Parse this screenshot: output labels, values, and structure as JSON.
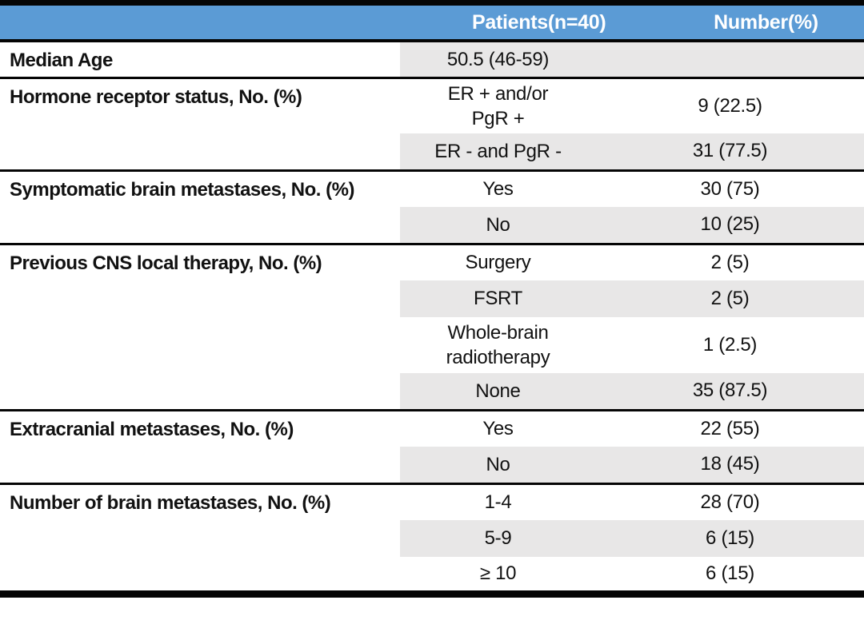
{
  "table": {
    "header": {
      "patients_col": "Patients(n=40)",
      "number_col": "Number(%)"
    },
    "sections": [
      {
        "label": "Median Age",
        "rows": [
          {
            "patients": "50.5 (46-59)",
            "number": ""
          }
        ]
      },
      {
        "label": "Hormone receptor status, No. (%)",
        "rows": [
          {
            "patients": "ER + and/or\nPgR +",
            "number": "9 (22.5)"
          },
          {
            "patients": "ER - and PgR -",
            "number": "31 (77.5)"
          }
        ]
      },
      {
        "label": "Symptomatic brain metastases, No. (%)",
        "rows": [
          {
            "patients": "Yes",
            "number": "30 (75)"
          },
          {
            "patients": "No",
            "number": "10 (25)"
          }
        ]
      },
      {
        "label": "Previous CNS local therapy, No. (%)",
        "rows": [
          {
            "patients": "Surgery",
            "number": "2 (5)"
          },
          {
            "patients": "FSRT",
            "number": "2 (5)"
          },
          {
            "patients": "Whole-brain\nradiotherapy",
            "number": "1 (2.5)"
          },
          {
            "patients": "None",
            "number": "35 (87.5)"
          }
        ]
      },
      {
        "label": "Extracranial metastases, No. (%)",
        "rows": [
          {
            "patients": "Yes",
            "number": "22 (55)"
          },
          {
            "patients": "No",
            "number": "18 (45)"
          }
        ]
      },
      {
        "label": "Number of brain metastases, No. (%)",
        "rows": [
          {
            "patients": "1-4",
            "number": "28 (70)"
          },
          {
            "patients": "5-9",
            "number": "6 (15)"
          },
          {
            "patients": "≥ 10",
            "number": "6 (15)"
          }
        ]
      }
    ],
    "colors": {
      "header_bg": "#5b9bd5",
      "header_text": "#ffffff",
      "band": "#e8e7e7",
      "border": "#050505"
    }
  }
}
